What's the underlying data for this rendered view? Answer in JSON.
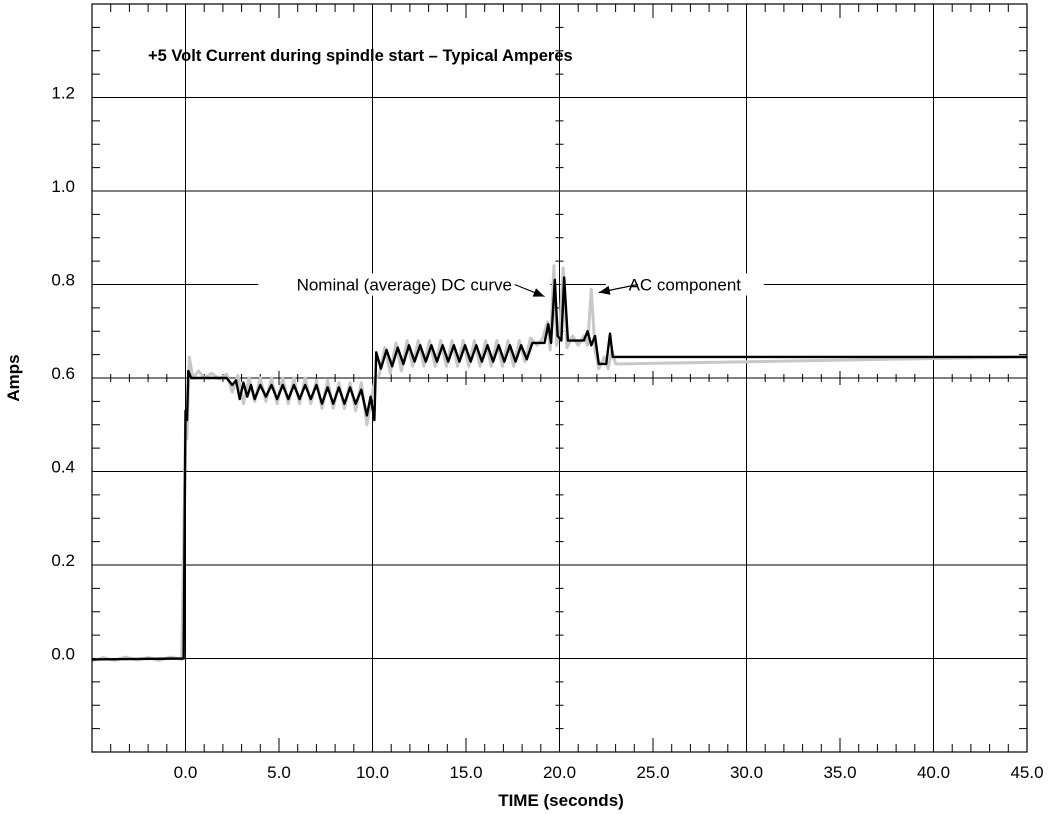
{
  "chart_data": {
    "type": "line",
    "title": "+5 Volt Current during spindle start – Typical Amperes",
    "xlabel": "TIME (seconds)",
    "ylabel": "Amps",
    "xlim": [
      -5.0,
      45.0
    ],
    "ylim": [
      -0.2,
      1.4
    ],
    "x_tick_labels": [
      "0.0",
      "5.0",
      "10.0",
      "15.0",
      "20.0",
      "25.0",
      "30.0",
      "35.0",
      "40.0",
      "45.0"
    ],
    "y_tick_labels": [
      "0.0",
      "0.2",
      "0.4",
      "0.6",
      "0.8",
      "1.0",
      "1.2"
    ],
    "grid": true,
    "colors": {
      "dc_curve": "#000000",
      "ac_component": "#c8c8c8",
      "grid": "#000000"
    },
    "annotations": [
      {
        "text": "Nominal (average) DC curve",
        "points_to": "DC curve near 19.5 s"
      },
      {
        "text": "AC component",
        "points_to": "AC component near 21.7 s"
      }
    ],
    "series": [
      {
        "key": "dc",
        "values": [
          [
            -5.0,
            -0.002
          ],
          [
            -0.1,
            0.0
          ],
          [
            0.0,
            0.53
          ],
          [
            0.08,
            0.51
          ],
          [
            0.15,
            0.615
          ],
          [
            0.3,
            0.6
          ],
          [
            2.2,
            0.6
          ],
          [
            2.5,
            0.585
          ],
          [
            2.7,
            0.595
          ],
          [
            2.9,
            0.555
          ],
          [
            3.1,
            0.59
          ],
          [
            3.3,
            0.56
          ],
          [
            3.5,
            0.585
          ],
          [
            3.7,
            0.555
          ],
          [
            4.0,
            0.585
          ],
          [
            4.3,
            0.56
          ],
          [
            4.6,
            0.585
          ],
          [
            4.9,
            0.555
          ],
          [
            5.2,
            0.585
          ],
          [
            5.5,
            0.555
          ],
          [
            5.8,
            0.585
          ],
          [
            6.1,
            0.555
          ],
          [
            6.4,
            0.585
          ],
          [
            6.7,
            0.555
          ],
          [
            7.0,
            0.585
          ],
          [
            7.3,
            0.545
          ],
          [
            7.6,
            0.58
          ],
          [
            7.9,
            0.545
          ],
          [
            8.2,
            0.58
          ],
          [
            8.5,
            0.545
          ],
          [
            8.8,
            0.58
          ],
          [
            9.1,
            0.545
          ],
          [
            9.4,
            0.575
          ],
          [
            9.7,
            0.52
          ],
          [
            9.9,
            0.56
          ],
          [
            10.1,
            0.51
          ],
          [
            10.2,
            0.655
          ],
          [
            10.45,
            0.62
          ],
          [
            10.75,
            0.66
          ],
          [
            11.05,
            0.625
          ],
          [
            11.35,
            0.665
          ],
          [
            11.65,
            0.63
          ],
          [
            11.95,
            0.67
          ],
          [
            12.25,
            0.635
          ],
          [
            12.55,
            0.67
          ],
          [
            12.85,
            0.635
          ],
          [
            13.15,
            0.67
          ],
          [
            13.45,
            0.635
          ],
          [
            13.75,
            0.67
          ],
          [
            14.05,
            0.635
          ],
          [
            14.35,
            0.67
          ],
          [
            14.65,
            0.635
          ],
          [
            14.95,
            0.67
          ],
          [
            15.25,
            0.635
          ],
          [
            15.55,
            0.67
          ],
          [
            15.85,
            0.635
          ],
          [
            16.15,
            0.67
          ],
          [
            16.45,
            0.635
          ],
          [
            16.75,
            0.67
          ],
          [
            17.05,
            0.635
          ],
          [
            17.35,
            0.67
          ],
          [
            17.65,
            0.635
          ],
          [
            17.95,
            0.67
          ],
          [
            18.25,
            0.64
          ],
          [
            18.55,
            0.675
          ],
          [
            19.2,
            0.675
          ],
          [
            19.4,
            0.715
          ],
          [
            19.55,
            0.675
          ],
          [
            19.75,
            0.81
          ],
          [
            19.9,
            0.69
          ],
          [
            20.1,
            0.68
          ],
          [
            20.25,
            0.815
          ],
          [
            20.45,
            0.68
          ],
          [
            21.3,
            0.68
          ],
          [
            21.5,
            0.7
          ],
          [
            21.7,
            0.67
          ],
          [
            21.9,
            0.69
          ],
          [
            22.1,
            0.63
          ],
          [
            22.5,
            0.63
          ],
          [
            22.7,
            0.695
          ],
          [
            22.85,
            0.645
          ],
          [
            45.0,
            0.645
          ]
        ]
      },
      {
        "key": "ac",
        "values": [
          [
            -5.0,
            -0.005
          ],
          [
            -4.4,
            0.002
          ],
          [
            -3.8,
            -0.004
          ],
          [
            -3.2,
            0.003
          ],
          [
            -2.6,
            -0.003
          ],
          [
            -2.0,
            0.002
          ],
          [
            -1.4,
            -0.004
          ],
          [
            -0.8,
            0.003
          ],
          [
            -0.2,
            -0.002
          ],
          [
            0.0,
            0.5
          ],
          [
            0.08,
            0.47
          ],
          [
            0.2,
            0.645
          ],
          [
            0.4,
            0.6
          ],
          [
            0.7,
            0.615
          ],
          [
            1.0,
            0.6
          ],
          [
            1.4,
            0.61
          ],
          [
            1.8,
            0.598
          ],
          [
            2.2,
            0.608
          ],
          [
            2.5,
            0.57
          ],
          [
            2.8,
            0.605
          ],
          [
            3.1,
            0.545
          ],
          [
            3.4,
            0.6
          ],
          [
            3.7,
            0.55
          ],
          [
            4.0,
            0.6
          ],
          [
            4.3,
            0.55
          ],
          [
            4.6,
            0.6
          ],
          [
            4.9,
            0.545
          ],
          [
            5.2,
            0.6
          ],
          [
            5.5,
            0.545
          ],
          [
            5.8,
            0.6
          ],
          [
            6.1,
            0.545
          ],
          [
            6.4,
            0.6
          ],
          [
            6.7,
            0.545
          ],
          [
            7.0,
            0.595
          ],
          [
            7.3,
            0.535
          ],
          [
            7.6,
            0.595
          ],
          [
            7.9,
            0.535
          ],
          [
            8.2,
            0.59
          ],
          [
            8.5,
            0.535
          ],
          [
            8.8,
            0.59
          ],
          [
            9.1,
            0.53
          ],
          [
            9.4,
            0.59
          ],
          [
            9.7,
            0.5
          ],
          [
            10.0,
            0.57
          ],
          [
            10.15,
            0.6
          ],
          [
            10.35,
            0.605
          ],
          [
            10.65,
            0.665
          ],
          [
            10.95,
            0.61
          ],
          [
            11.25,
            0.675
          ],
          [
            11.55,
            0.615
          ],
          [
            11.85,
            0.68
          ],
          [
            12.15,
            0.625
          ],
          [
            12.45,
            0.68
          ],
          [
            12.75,
            0.625
          ],
          [
            13.05,
            0.68
          ],
          [
            13.35,
            0.625
          ],
          [
            13.65,
            0.68
          ],
          [
            13.95,
            0.625
          ],
          [
            14.25,
            0.68
          ],
          [
            14.55,
            0.625
          ],
          [
            14.85,
            0.68
          ],
          [
            15.15,
            0.625
          ],
          [
            15.45,
            0.68
          ],
          [
            15.75,
            0.625
          ],
          [
            16.05,
            0.68
          ],
          [
            16.35,
            0.625
          ],
          [
            16.65,
            0.68
          ],
          [
            16.95,
            0.625
          ],
          [
            17.25,
            0.68
          ],
          [
            17.55,
            0.625
          ],
          [
            17.85,
            0.68
          ],
          [
            18.15,
            0.635
          ],
          [
            18.45,
            0.685
          ],
          [
            18.8,
            0.67
          ],
          [
            19.1,
            0.685
          ],
          [
            19.35,
            0.72
          ],
          [
            19.5,
            0.66
          ],
          [
            19.7,
            0.84
          ],
          [
            19.85,
            0.67
          ],
          [
            20.0,
            0.7
          ],
          [
            20.2,
            0.835
          ],
          [
            20.4,
            0.665
          ],
          [
            20.7,
            0.69
          ],
          [
            21.0,
            0.67
          ],
          [
            21.3,
            0.69
          ],
          [
            21.5,
            0.67
          ],
          [
            21.7,
            0.79
          ],
          [
            21.9,
            0.66
          ],
          [
            22.1,
            0.62
          ],
          [
            22.4,
            0.645
          ],
          [
            22.6,
            0.62
          ],
          [
            22.8,
            0.66
          ],
          [
            23.0,
            0.63
          ],
          [
            45.0,
            0.645
          ]
        ]
      }
    ]
  }
}
